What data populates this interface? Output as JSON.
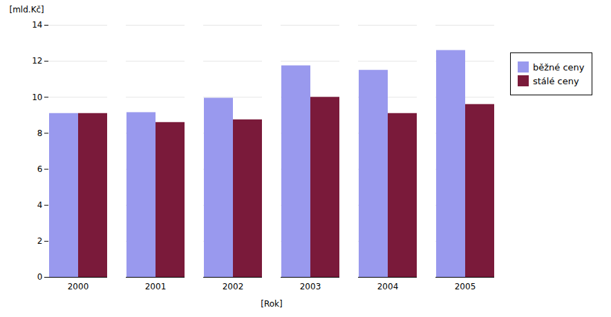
{
  "chart_data": {
    "type": "bar",
    "categories": [
      "2000",
      "2001",
      "2002",
      "2003",
      "2004",
      "2005"
    ],
    "series": [
      {
        "name": "běžné ceny",
        "color": "#9999ee",
        "values": [
          9.1,
          9.15,
          9.95,
          11.75,
          11.5,
          12.6
        ]
      },
      {
        "name": "stálé ceny",
        "color": "#7a1a3a",
        "values": [
          9.1,
          8.6,
          8.75,
          10.0,
          9.1,
          9.6
        ]
      }
    ],
    "xlabel": "[Rok]",
    "ylabel": "[mld.Kč]",
    "ylim": [
      0,
      14
    ],
    "yticks": [
      0,
      2,
      4,
      6,
      8,
      10,
      12,
      14
    ],
    "grid": true,
    "legend": "right"
  }
}
